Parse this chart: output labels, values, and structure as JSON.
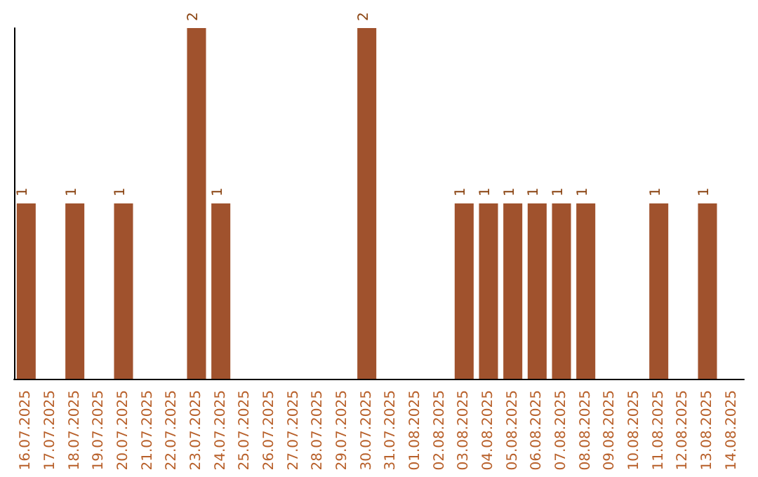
{
  "chart_data": {
    "type": "bar",
    "categories": [
      "16.07.2025",
      "17.07.2025",
      "18.07.2025",
      "19.07.2025",
      "20.07.2025",
      "21.07.2025",
      "22.07.2025",
      "23.07.2025",
      "24.07.2025",
      "25.07.2025",
      "26.07.2025",
      "27.07.2025",
      "28.07.2025",
      "29.07.2025",
      "30.07.2025",
      "31.07.2025",
      "01.08.2025",
      "02.08.2025",
      "03.08.2025",
      "04.08.2025",
      "05.08.2025",
      "06.08.2025",
      "07.08.2025",
      "08.08.2025",
      "09.08.2025",
      "10.08.2025",
      "11.08.2025",
      "12.08.2025",
      "13.08.2025",
      "14.08.2025"
    ],
    "values": [
      1,
      0,
      1,
      0,
      1,
      0,
      0,
      2,
      1,
      0,
      0,
      0,
      0,
      0,
      2,
      0,
      0,
      0,
      1,
      1,
      1,
      1,
      1,
      1,
      0,
      0,
      1,
      0,
      1,
      0
    ],
    "value_labels": [
      "1",
      null,
      "1",
      null,
      "1",
      null,
      null,
      "2",
      "1",
      null,
      null,
      null,
      null,
      null,
      "2",
      null,
      null,
      null,
      "1",
      "1",
      "1",
      "1",
      "1",
      "1",
      null,
      null,
      "1",
      null,
      "1",
      null
    ],
    "color": "#a0522d",
    "tick_labels": "x"
  }
}
